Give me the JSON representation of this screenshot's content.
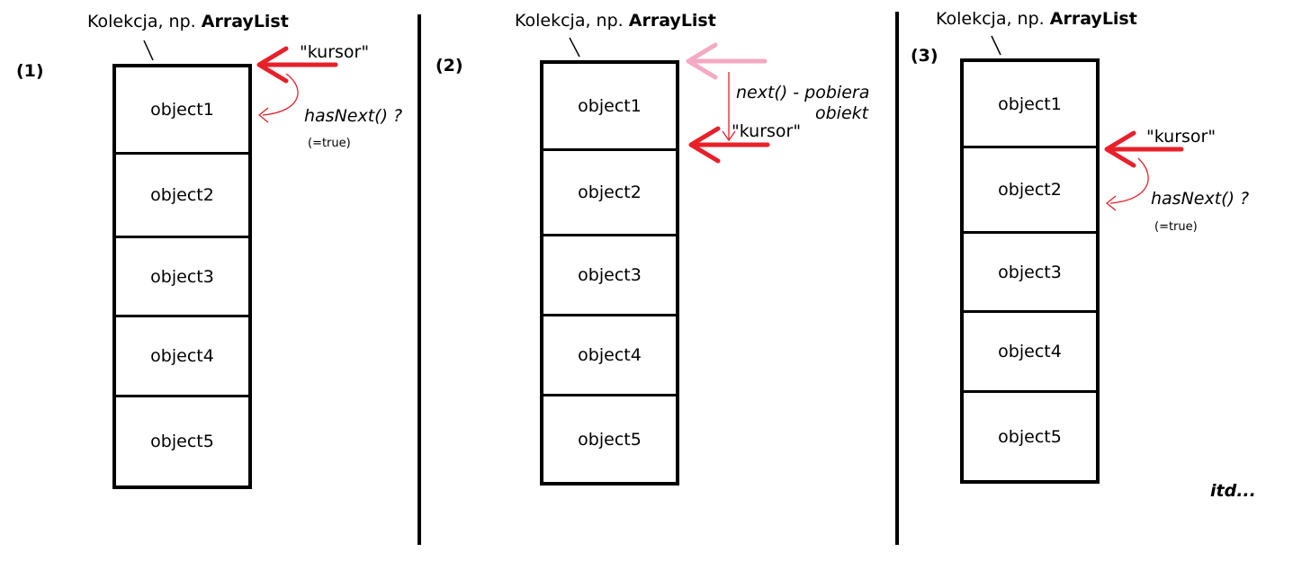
{
  "panels": [
    {
      "step": "(1)",
      "title_prefix": "Kolekcja, np.",
      "title_bold": "ArrayList",
      "objects": [
        "object1",
        "object2",
        "object3",
        "object4",
        "object5"
      ],
      "cursor_label": "\"kursor\"",
      "question": "hasNext() ?",
      "answer": "(=true)"
    },
    {
      "step": "(2)",
      "title_prefix": "Kolekcja, np.",
      "title_bold": "ArrayList",
      "objects": [
        "object1",
        "object2",
        "object3",
        "object4",
        "object5"
      ],
      "cursor_label": "\"kursor\"",
      "next_line1": "next() - pobiera",
      "next_line2": "obiekt"
    },
    {
      "step": "(3)",
      "title_prefix": "Kolekcja, np.",
      "title_bold": "ArrayList",
      "objects": [
        "object1",
        "object2",
        "object3",
        "object4",
        "object5"
      ],
      "cursor_label": "\"kursor\"",
      "question": "hasNext() ?",
      "answer": "(=true)"
    }
  ],
  "footer": {
    "etc": "itd..."
  },
  "colors": {
    "arrow": "#e8202a",
    "arrow_faded": "#f4a9c4",
    "line": "#000000"
  },
  "icons": [
    "cursor-arrow-icon",
    "curved-arrow-icon",
    "down-arrow-icon"
  ]
}
